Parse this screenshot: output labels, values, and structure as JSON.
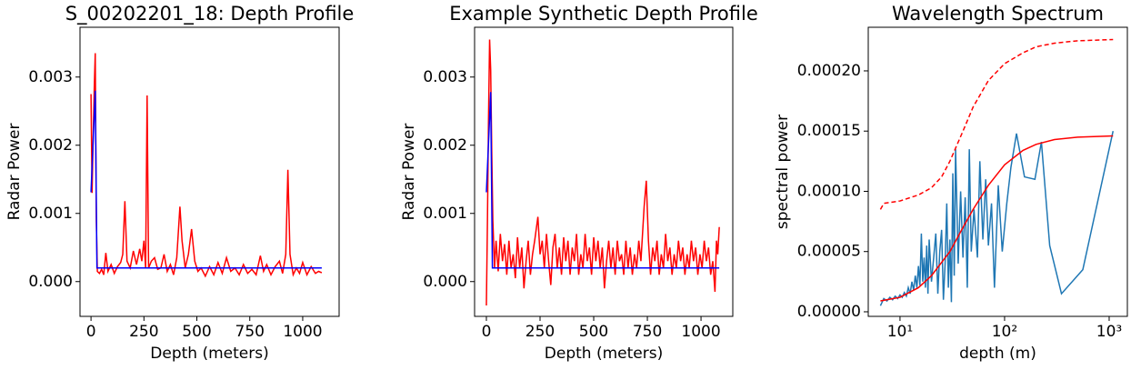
{
  "chart_data": [
    {
      "type": "line",
      "title": "S_00202201_18: Depth Profile",
      "xlabel": "Depth (meters)",
      "ylabel": "Radar Power",
      "xlim": [
        -52,
        1172
      ],
      "ylim": [
        -0.00051,
        0.00373
      ],
      "xticks": [
        0,
        250,
        500,
        750,
        1000
      ],
      "yticks": [
        {
          "value": 0,
          "label": "0.000"
        },
        {
          "value": 0.001,
          "label": "0.001"
        },
        {
          "value": 0.002,
          "label": "0.002"
        },
        {
          "value": 0.003,
          "label": "0.003"
        }
      ],
      "series": [
        {
          "color": "#ff0000",
          "style": "solid",
          "x": [
            0,
            5,
            10,
            15,
            20,
            25,
            30,
            40,
            50,
            60,
            70,
            80,
            95,
            110,
            125,
            140,
            150,
            160,
            170,
            185,
            200,
            215,
            230,
            240,
            250,
            258,
            265,
            272,
            285,
            300,
            315,
            330,
            345,
            360,
            375,
            390,
            405,
            420,
            430,
            445,
            460,
            475,
            490,
            505,
            520,
            540,
            560,
            580,
            600,
            620,
            640,
            660,
            680,
            700,
            720,
            740,
            760,
            780,
            800,
            815,
            830,
            850,
            870,
            890,
            905,
            920,
            930,
            940,
            955,
            970,
            985,
            1000,
            1020,
            1040,
            1060,
            1075,
            1090
          ],
          "values": [
            0.00275,
            0.0013,
            0.0021,
            0.0028,
            0.00335,
            0.0009,
            0.00015,
            0.00012,
            0.00018,
            0.0001,
            0.00042,
            0.00015,
            0.00025,
            0.00012,
            0.00022,
            0.00028,
            0.0004,
            0.00118,
            0.0003,
            0.0002,
            0.00045,
            0.00025,
            0.00048,
            0.0003,
            0.0006,
            0.0002,
            0.00273,
            0.0002,
            0.0003,
            0.00035,
            0.00018,
            0.0002,
            0.0004,
            0.00015,
            0.00025,
            0.0001,
            0.00035,
            0.0011,
            0.0006,
            0.0002,
            0.0004,
            0.00077,
            0.0003,
            0.00015,
            0.0002,
            8e-05,
            0.00022,
            0.0001,
            0.00028,
            0.00012,
            0.00035,
            0.00015,
            0.0002,
            0.0001,
            0.00025,
            0.00012,
            0.00018,
            0.0001,
            0.00038,
            0.00015,
            0.00025,
            0.0001,
            0.00022,
            0.0003,
            0.00012,
            0.0004,
            0.00164,
            0.0004,
            0.0001,
            0.0002,
            0.00012,
            0.00028,
            0.0001,
            0.00022,
            0.00012,
            0.00015,
            0.00013
          ]
        },
        {
          "color": "#0000ff",
          "style": "solid",
          "x": [
            0,
            20,
            28,
            1090
          ],
          "values": [
            0.00131,
            0.0028,
            0.0002,
            0.0002
          ]
        }
      ]
    },
    {
      "type": "line",
      "title": "Example Synthetic Depth Profile",
      "xlabel": "Depth (meters)",
      "ylabel": "Radar Power",
      "xlim": [
        -55,
        1148
      ],
      "ylim": [
        -0.00051,
        0.00373
      ],
      "xticks": [
        0,
        250,
        500,
        750,
        1000
      ],
      "yticks": [
        {
          "value": 0,
          "label": "0.000"
        },
        {
          "value": 0.001,
          "label": "0.001"
        },
        {
          "value": 0.002,
          "label": "0.002"
        },
        {
          "value": 0.003,
          "label": "0.003"
        }
      ],
      "series": [
        {
          "color": "#ff0000",
          "style": "solid",
          "x": [
            0,
            5,
            10,
            15,
            20,
            25,
            30,
            38,
            45,
            55,
            65,
            75,
            85,
            95,
            105,
            115,
            125,
            135,
            145,
            155,
            165,
            175,
            185,
            195,
            205,
            215,
            225,
            240,
            250,
            260,
            270,
            280,
            290,
            300,
            310,
            320,
            330,
            340,
            350,
            360,
            370,
            380,
            390,
            400,
            410,
            420,
            430,
            440,
            450,
            460,
            470,
            480,
            490,
            500,
            510,
            520,
            530,
            540,
            550,
            560,
            570,
            580,
            590,
            600,
            610,
            620,
            630,
            640,
            650,
            660,
            670,
            680,
            690,
            700,
            710,
            720,
            735,
            745,
            755,
            765,
            775,
            785,
            795,
            805,
            815,
            825,
            835,
            845,
            855,
            865,
            875,
            885,
            895,
            905,
            915,
            925,
            935,
            945,
            955,
            965,
            975,
            985,
            995,
            1005,
            1015,
            1025,
            1035,
            1045,
            1055,
            1065,
            1072,
            1078,
            1085
          ],
          "values": [
            -0.00035,
            0.0009,
            0.0024,
            0.00355,
            0.0031,
            0.0019,
            0.0009,
            0.0002,
            0.0006,
            0.00015,
            0.0007,
            0.0003,
            0.00055,
            0.0001,
            0.0006,
            0.0002,
            0.0004,
            5e-05,
            0.00065,
            0.0002,
            0.0005,
            -0.0001,
            0.0003,
            0.0006,
            0.0001,
            0.0004,
            0.0006,
            0.00095,
            0.0004,
            0.0006,
            0.0002,
            0.0007,
            0.0003,
            -5e-05,
            0.0005,
            0.0007,
            0.0002,
            0.0005,
            0.0001,
            0.00065,
            0.0003,
            0.0006,
            0.0001,
            0.0005,
            0.0003,
            0.0007,
            0.0001,
            0.0004,
            0.0002,
            0.0007,
            0.0003,
            0.0005,
            0.0001,
            0.00065,
            0.0003,
            0.0006,
            0.0002,
            0.0005,
            -0.0001,
            0.0003,
            0.0006,
            0.0002,
            0.0005,
            0.0001,
            0.0006,
            0.0003,
            0.0004,
            0.0001,
            0.0006,
            0.0002,
            0.0005,
            0.0001,
            0.0004,
            0.0002,
            0.0006,
            0.0003,
            0.0011,
            0.00148,
            0.0006,
            0.0001,
            0.0005,
            0.0003,
            0.0006,
            0.0001,
            0.0004,
            0.0002,
            0.0007,
            0.0003,
            0.0005,
            0.0001,
            0.0004,
            0.0002,
            0.0006,
            0.0003,
            0.0005,
            0.0001,
            0.0004,
            0.0002,
            0.0006,
            0.0003,
            0.0005,
            0.0001,
            0.0004,
            0.0002,
            0.0006,
            0.0003,
            0.0005,
            0.0001,
            0.0003,
            -0.00015,
            0.0006,
            0.0004,
            0.0008
          ]
        },
        {
          "color": "#0000ff",
          "style": "solid",
          "x": [
            0,
            20,
            28,
            1085
          ],
          "values": [
            0.00131,
            0.00278,
            0.0002,
            0.0002
          ]
        }
      ]
    },
    {
      "type": "line",
      "title": "Wavelength Spectrum",
      "xlabel": "depth (m)",
      "ylabel": "spectral power",
      "log_x": true,
      "xlim": [
        4.97,
        1493
      ],
      "ylim": [
        -3.8e-06,
        0.0002362
      ],
      "xticks": [
        {
          "value": 10,
          "label": "10¹"
        },
        {
          "value": 100,
          "label": "10²"
        },
        {
          "value": 1000,
          "label": "10³"
        }
      ],
      "yticks": [
        {
          "value": 0,
          "label": "0.00000"
        },
        {
          "value": 5e-05,
          "label": "0.00005"
        },
        {
          "value": 0.0001,
          "label": "0.00010"
        },
        {
          "value": 0.00015,
          "label": "0.00015"
        },
        {
          "value": 0.0002,
          "label": "0.00020"
        }
      ],
      "series": [
        {
          "color": "#1f77b4",
          "style": "solid",
          "x": [
            6.5,
            7,
            7.5,
            8,
            8.5,
            9,
            9.5,
            10,
            10.5,
            11,
            11.5,
            12,
            12.5,
            13,
            13.5,
            14,
            14.5,
            15,
            15.5,
            16,
            16.5,
            17,
            17.5,
            18,
            18.5,
            19,
            20,
            21,
            22,
            23,
            24,
            25,
            26,
            27,
            28,
            29,
            30,
            31,
            32,
            33,
            34,
            36,
            38,
            40,
            42,
            44,
            46,
            48,
            51,
            55,
            58,
            62,
            66,
            70,
            75,
            80,
            87,
            95,
            105,
            115,
            130,
            155,
            195,
            225,
            270,
            350,
            560,
            1090
          ],
          "values": [
            5e-06,
            1.1e-05,
            9e-06,
            1.2e-05,
            1e-05,
            1.3e-05,
            1.1e-05,
            1.4e-05,
            1.2e-05,
            1.6e-05,
            1.3e-05,
            2e-05,
            1.5e-05,
            2.5e-05,
            1.8e-05,
            3e-05,
            2e-05,
            3.8e-05,
            2.2e-05,
            6.5e-05,
            2.5e-05,
            4.5e-05,
            2e-05,
            5.5e-05,
            1.5e-05,
            6e-05,
            2.5e-05,
            4.5e-05,
            6.5e-05,
            1.5e-05,
            5e-05,
            6.8e-05,
            1e-05,
            4e-05,
            9e-05,
            2e-05,
            6e-05,
            8e-06,
            0.000115,
            3e-05,
            0.000135,
            4e-05,
            0.0001,
            4.5e-05,
            9.5e-05,
            2e-05,
            0.000135,
            5e-05,
            8.5e-05,
            4.5e-05,
            0.000125,
            6e-05,
            0.00011,
            5.5e-05,
            9e-05,
            2e-05,
            0.000105,
            5e-05,
            9e-05,
            0.00012,
            0.000148,
            0.000112,
            0.00011,
            0.000141,
            5.5e-05,
            1.5e-05,
            3.5e-05,
            0.00015
          ]
        },
        {
          "color": "#ff0000",
          "style": "solid",
          "x": [
            6.5,
            10,
            15,
            20,
            30,
            40,
            50,
            70,
            100,
            150,
            200,
            300,
            500,
            1090
          ],
          "values": [
            9e-06,
            1.2e-05,
            2e-05,
            3e-05,
            5e-05,
            7e-05,
            8.5e-05,
            0.000105,
            0.000122,
            0.000134,
            0.000139,
            0.000143,
            0.000145,
            0.000146
          ]
        },
        {
          "color": "#ff0000",
          "style": "dashed",
          "x": [
            6.5,
            7,
            10,
            15,
            20,
            25,
            30,
            40,
            50,
            70,
            100,
            150,
            200,
            300,
            500,
            1090
          ],
          "values": [
            8.5e-05,
            9e-05,
            9.2e-05,
            9.7e-05,
            0.000103,
            0.000112,
            0.000125,
            0.00015,
            0.00017,
            0.000192,
            0.000206,
            0.000215,
            0.00022,
            0.000223,
            0.000225,
            0.000226
          ]
        }
      ]
    }
  ]
}
